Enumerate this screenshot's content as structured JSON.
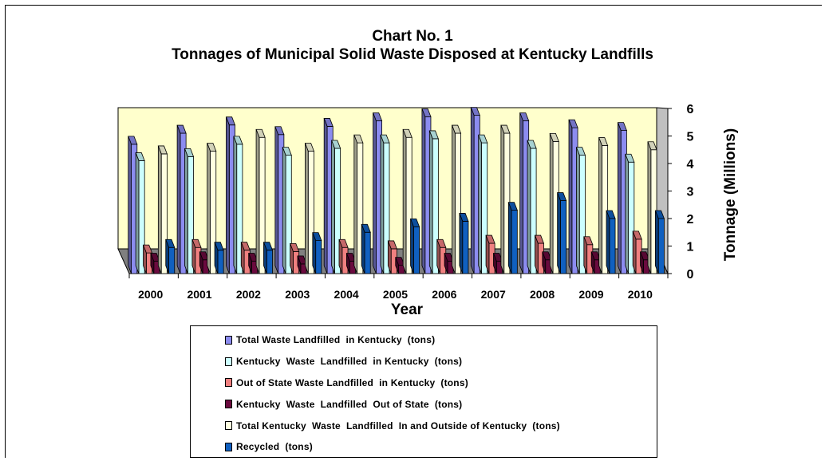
{
  "chart_data": {
    "type": "bar",
    "title": "Chart No. 1",
    "subtitle": "Tonnages of Municipal Solid Waste Disposed at Kentucky Landfills",
    "xlabel": "Year",
    "ylabel": "Tonnage (Millions)",
    "ylim": [
      0,
      6
    ],
    "yticks": [
      0,
      1,
      2,
      3,
      4,
      5,
      6
    ],
    "grid": false,
    "legend_position": "bottom",
    "categories": [
      "2000",
      "2001",
      "2002",
      "2003",
      "2004",
      "2005",
      "2006",
      "2007",
      "2008",
      "2009",
      "2010"
    ],
    "series": [
      {
        "name": "Total Waste Landfilled  in Kentucky  (tons)",
        "color": "#8c8cf0",
        "values": [
          4.7,
          5.1,
          5.4,
          5.05,
          5.35,
          5.55,
          5.7,
          5.75,
          5.55,
          5.3,
          5.2
        ]
      },
      {
        "name": "Kentucky  Waste  Landfilled  in Kentucky  (tons)",
        "color": "#ccffff",
        "values": [
          4.1,
          4.25,
          4.7,
          4.3,
          4.55,
          4.75,
          4.9,
          4.75,
          4.55,
          4.3,
          4.05
        ]
      },
      {
        "name": "Out of State Waste Landfilled  in Kentucky  (tons)",
        "color": "#f08080",
        "values": [
          0.75,
          0.95,
          0.85,
          0.8,
          0.95,
          0.9,
          0.95,
          1.1,
          1.1,
          1.05,
          1.25
        ]
      },
      {
        "name": "Kentucky  Waste  Landfilled  Out of State  (tons)",
        "color": "#6a0a3e",
        "values": [
          0.45,
          0.5,
          0.45,
          0.35,
          0.45,
          0.3,
          0.45,
          0.45,
          0.5,
          0.5,
          0.5
        ]
      },
      {
        "name": "Total Kentucky  Waste  Landfilled  In and Outside of Kentucky  (tons)",
        "color": "#ffffe0",
        "values": [
          4.35,
          4.45,
          4.95,
          4.45,
          4.75,
          4.95,
          5.1,
          5.1,
          4.8,
          4.65,
          4.5
        ]
      },
      {
        "name": "Recycled  (tons)",
        "color": "#1060c0",
        "values": [
          0.95,
          0.85,
          0.85,
          1.2,
          1.5,
          1.7,
          1.9,
          2.3,
          2.65,
          2.0,
          2.0
        ]
      }
    ]
  }
}
